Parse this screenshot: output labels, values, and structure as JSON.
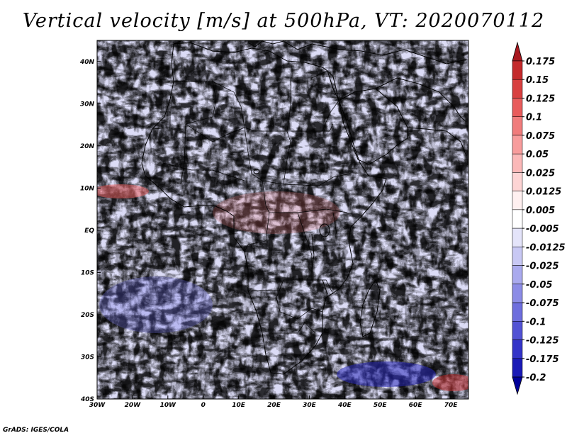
{
  "title": "Vertical velocity [m/s] at 500hPa, VT: 2020070112",
  "credit": "GrADS: IGES/COLA",
  "map": {
    "lat_labels": [
      "40N",
      "30N",
      "20N",
      "10N",
      "EQ",
      "10S",
      "20S",
      "30S",
      "40S"
    ],
    "lon_labels": [
      "30W",
      "20W",
      "10W",
      "0",
      "10E",
      "20E",
      "30E",
      "40E",
      "50E",
      "60E",
      "70E"
    ],
    "extent": {
      "lon_min": -30,
      "lon_max": 75,
      "lat_min": -40,
      "lat_max": 45
    }
  },
  "colorbar": {
    "labels": [
      "0.175",
      "0.15",
      "0.125",
      "0.1",
      "0.075",
      "0.05",
      "0.025",
      "0.0125",
      "0.005",
      "-0.005",
      "-0.0125",
      "-0.025",
      "-0.05",
      "-0.075",
      "-0.1",
      "-0.125",
      "-0.175",
      "-0.2"
    ],
    "colors": [
      "#a8181f",
      "#c42a2c",
      "#d84040",
      "#e85c5c",
      "#f07c7c",
      "#f79c9c",
      "#fbb8b8",
      "#fdd4d4",
      "#fff0f0",
      "#ffffff",
      "#e4e4fa",
      "#c8c8f4",
      "#aaaaee",
      "#8c8ce6",
      "#6e6edd",
      "#5252d4",
      "#3434c8",
      "#1a1ab6",
      "#00009a"
    ]
  }
}
